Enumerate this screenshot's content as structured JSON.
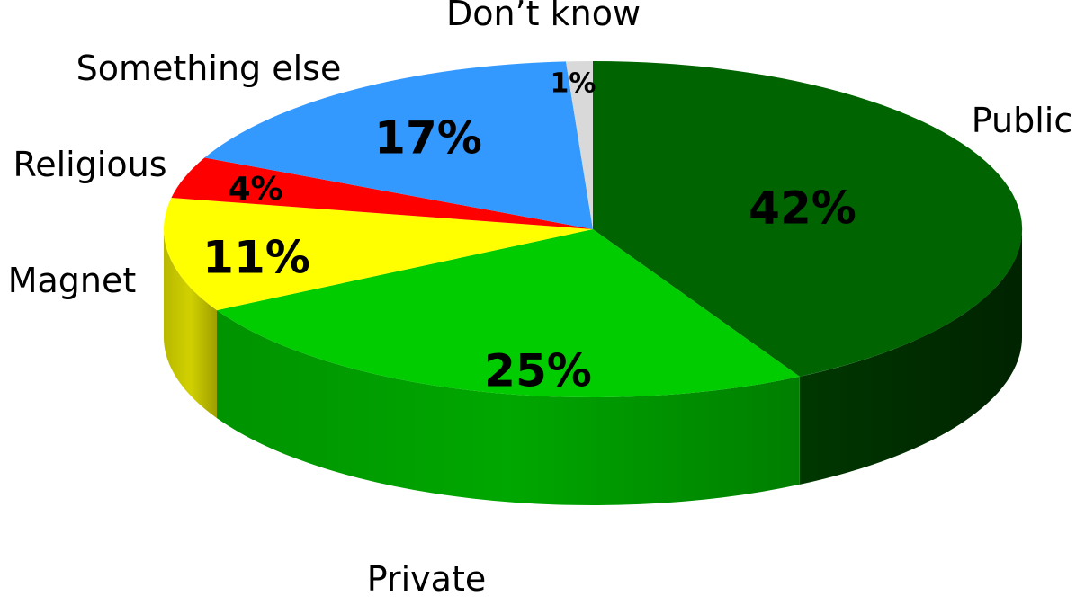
{
  "chart_data": {
    "type": "pie",
    "style": "3d",
    "slices": [
      {
        "label": "Public",
        "value": 42,
        "value_label": "42%",
        "color": "#006400"
      },
      {
        "label": "Private",
        "value": 25,
        "value_label": "25%",
        "color": "#00cc00"
      },
      {
        "label": "Magnet",
        "value": 11,
        "value_label": "11%",
        "color": "#ffff00"
      },
      {
        "label": "Religious",
        "value": 4,
        "value_label": "4%",
        "color": "#ff0000"
      },
      {
        "label": "Something else",
        "value": 17,
        "value_label": "17%",
        "color": "#3399ff"
      },
      {
        "label": "Don’t know",
        "value": 1,
        "value_label": "1%",
        "color": "#d9d9d9"
      }
    ],
    "start": "12 o'clock",
    "direction": "clockwise",
    "legend": "none"
  }
}
